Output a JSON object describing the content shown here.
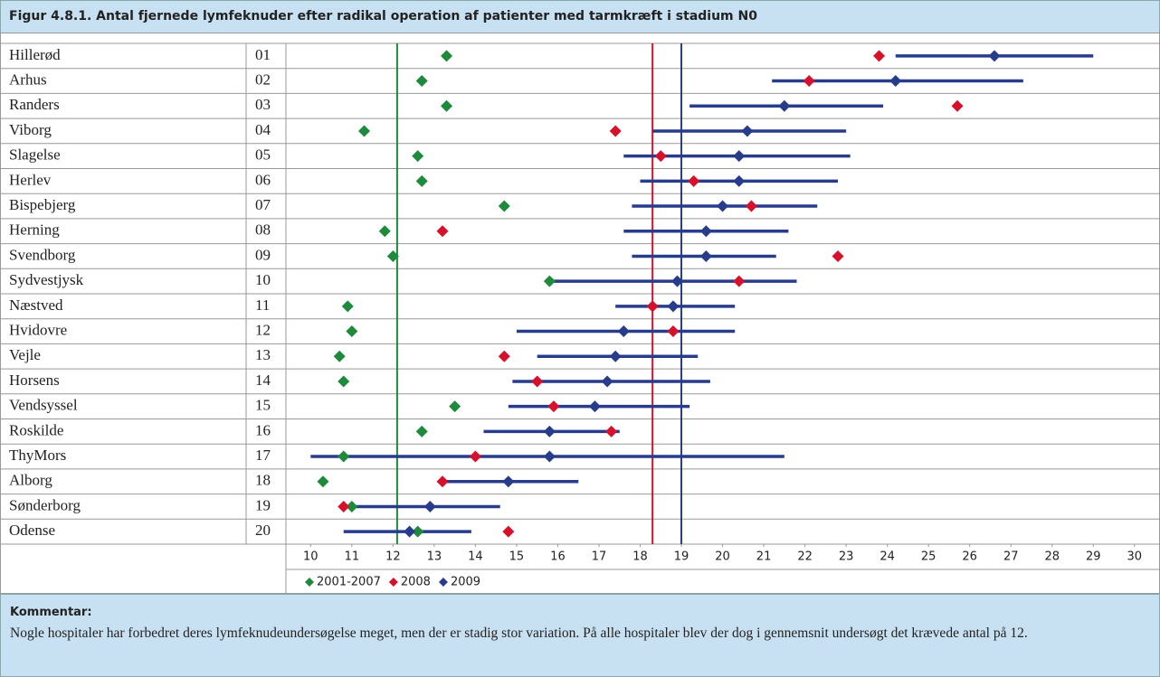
{
  "chart_data": {
    "type": "dot",
    "title": "Figur 4.8.1. Antal fjernede lymfeknuder efter radikal operation af patienter med tarmkræft i stadium N0",
    "categories": [
      "Hillerød",
      "Arhus",
      "Randers",
      "Viborg",
      "Slagelse",
      "Herlev",
      "Bispebjerg",
      "Herning",
      "Svendborg",
      "Sydvestjysk",
      "Næstved",
      "Hvidovre",
      "Vejle",
      "Horsens",
      "Vendsyssel",
      "Roskilde",
      "ThyMors",
      "Alborg",
      "Sønderborg",
      "Odense"
    ],
    "codes": [
      "01",
      "02",
      "03",
      "04",
      "05",
      "06",
      "07",
      "08",
      "09",
      "10",
      "11",
      "12",
      "13",
      "14",
      "15",
      "16",
      "17",
      "18",
      "19",
      "20"
    ],
    "series": [
      {
        "name": "2001-2007",
        "color": "#1e8a3c",
        "values": [
          13.3,
          12.7,
          13.3,
          11.3,
          12.6,
          12.7,
          14.7,
          11.8,
          12.0,
          15.8,
          10.9,
          11.0,
          10.7,
          10.8,
          13.5,
          12.7,
          10.8,
          10.3,
          11.0,
          12.6
        ]
      },
      {
        "name": "2008",
        "color": "#d7102b",
        "values": [
          23.8,
          22.1,
          25.7,
          17.4,
          18.5,
          19.3,
          20.7,
          13.2,
          22.8,
          20.4,
          18.3,
          18.8,
          14.7,
          15.5,
          15.9,
          17.3,
          14.0,
          13.2,
          10.8,
          14.8
        ]
      },
      {
        "name": "2009",
        "color": "#283c8c",
        "values": [
          26.6,
          24.2,
          21.5,
          20.6,
          20.4,
          20.4,
          20.0,
          19.6,
          19.6,
          18.9,
          18.8,
          17.6,
          17.4,
          17.2,
          16.9,
          15.8,
          15.8,
          14.8,
          12.9,
          12.4
        ],
        "low": [
          24.2,
          21.2,
          19.2,
          18.3,
          17.6,
          18.0,
          17.8,
          17.6,
          17.8,
          15.9,
          17.4,
          15.0,
          15.5,
          14.9,
          14.8,
          14.2,
          10.0,
          13.2,
          10.8,
          10.8
        ],
        "high": [
          29.0,
          27.3,
          23.9,
          23.0,
          23.1,
          22.8,
          22.3,
          21.6,
          21.3,
          21.8,
          20.3,
          20.3,
          19.4,
          19.7,
          19.2,
          17.5,
          21.5,
          16.5,
          14.6,
          13.9
        ]
      }
    ],
    "reference_lines": [
      {
        "value": 12.1,
        "color": "#1e8a3c"
      },
      {
        "value": 18.3,
        "color": "#d7102b"
      },
      {
        "value": 19.0,
        "color": "#283c8c"
      }
    ],
    "xlim": [
      9.4,
      30.4
    ],
    "xticks": [
      10,
      11,
      12,
      13,
      14,
      15,
      16,
      17,
      18,
      19,
      20,
      21,
      22,
      23,
      24,
      25,
      26,
      27,
      28,
      29,
      30
    ],
    "comment_title": "Kommentar:",
    "comment_text": "Nogle hospitaler har forbedret deres lymfeknudeundersøgelse meget, men der er stadig stor variation. På alle hospitaler blev der dog i gennemsnit undersøgt det krævede antal på 12."
  }
}
